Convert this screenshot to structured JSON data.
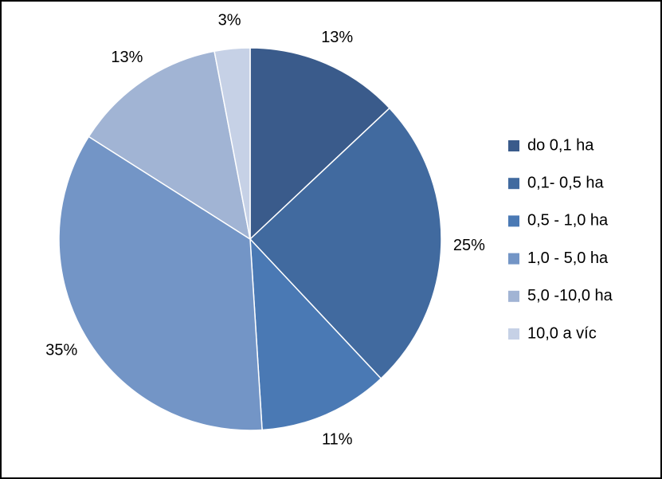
{
  "chart_data": {
    "type": "pie",
    "categories": [
      "do 0,1 ha",
      "0,1- 0,5 ha",
      "0,5 - 1,0 ha",
      "1,0 - 5,0 ha",
      "5,0 -10,0 ha",
      "10,0 a víc"
    ],
    "values": [
      13,
      25,
      11,
      35,
      13,
      3
    ],
    "value_labels": [
      "13%",
      "25%",
      "11%",
      "35%",
      "13%",
      "3%"
    ],
    "colors": [
      "#3a5b8b",
      "#416a9f",
      "#4a79b4",
      "#7395c6",
      "#a1b4d4",
      "#c6d1e6"
    ],
    "legend": "right"
  }
}
